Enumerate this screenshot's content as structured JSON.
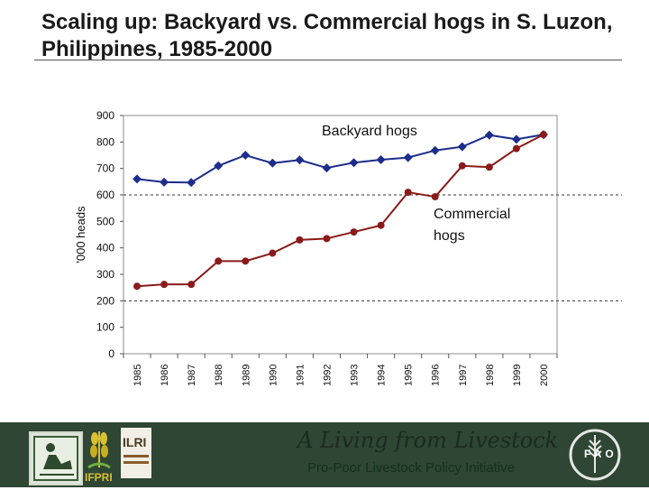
{
  "title": "Scaling up: Backyard vs. Commercial hogs in S. Luzon, Philippines, 1985-2000",
  "chart_data": {
    "type": "line",
    "ylabel": "'000 heads",
    "xlabel": "",
    "ylim": [
      0,
      900
    ],
    "yticks": [
      "0",
      "100",
      "200",
      "300",
      "400",
      "500",
      "600",
      "700",
      "800",
      "900"
    ],
    "categories": [
      "1985",
      "1986",
      "1987",
      "1988",
      "1989",
      "1990",
      "1991",
      "1992",
      "1993",
      "1994",
      "1995",
      "1996",
      "1997",
      "1998",
      "1999",
      "2000"
    ],
    "reference_lines": [
      200,
      600
    ],
    "series": [
      {
        "name": "Backyard hogs",
        "color": "#1c2d8c",
        "marker": "diamond",
        "values": [
          660,
          648,
          647,
          710,
          750,
          720,
          732,
          702,
          722,
          733,
          741,
          768,
          782,
          826,
          810,
          828
        ]
      },
      {
        "name": "Commercial hogs",
        "color": "#8b1a1a",
        "marker": "circle",
        "values": [
          255,
          262,
          262,
          350,
          350,
          380,
          430,
          435,
          460,
          485,
          610,
          593,
          710,
          705,
          775,
          828
        ]
      }
    ],
    "annotations": [
      "Backyard hogs",
      "Commercial",
      "hogs"
    ]
  },
  "footer": {
    "tagline": "A Living from Livestock",
    "subtag": "Pro-Poor Livestock Policy Initiative",
    "logos": {
      "ifpri_text": "IFPRI",
      "ilri_text": "ILRI",
      "fao_text": "FAO"
    }
  },
  "colors": {
    "footer_bg": "#2e4633",
    "backyard": "#1c2d8c",
    "commercial": "#8b1a1a"
  }
}
